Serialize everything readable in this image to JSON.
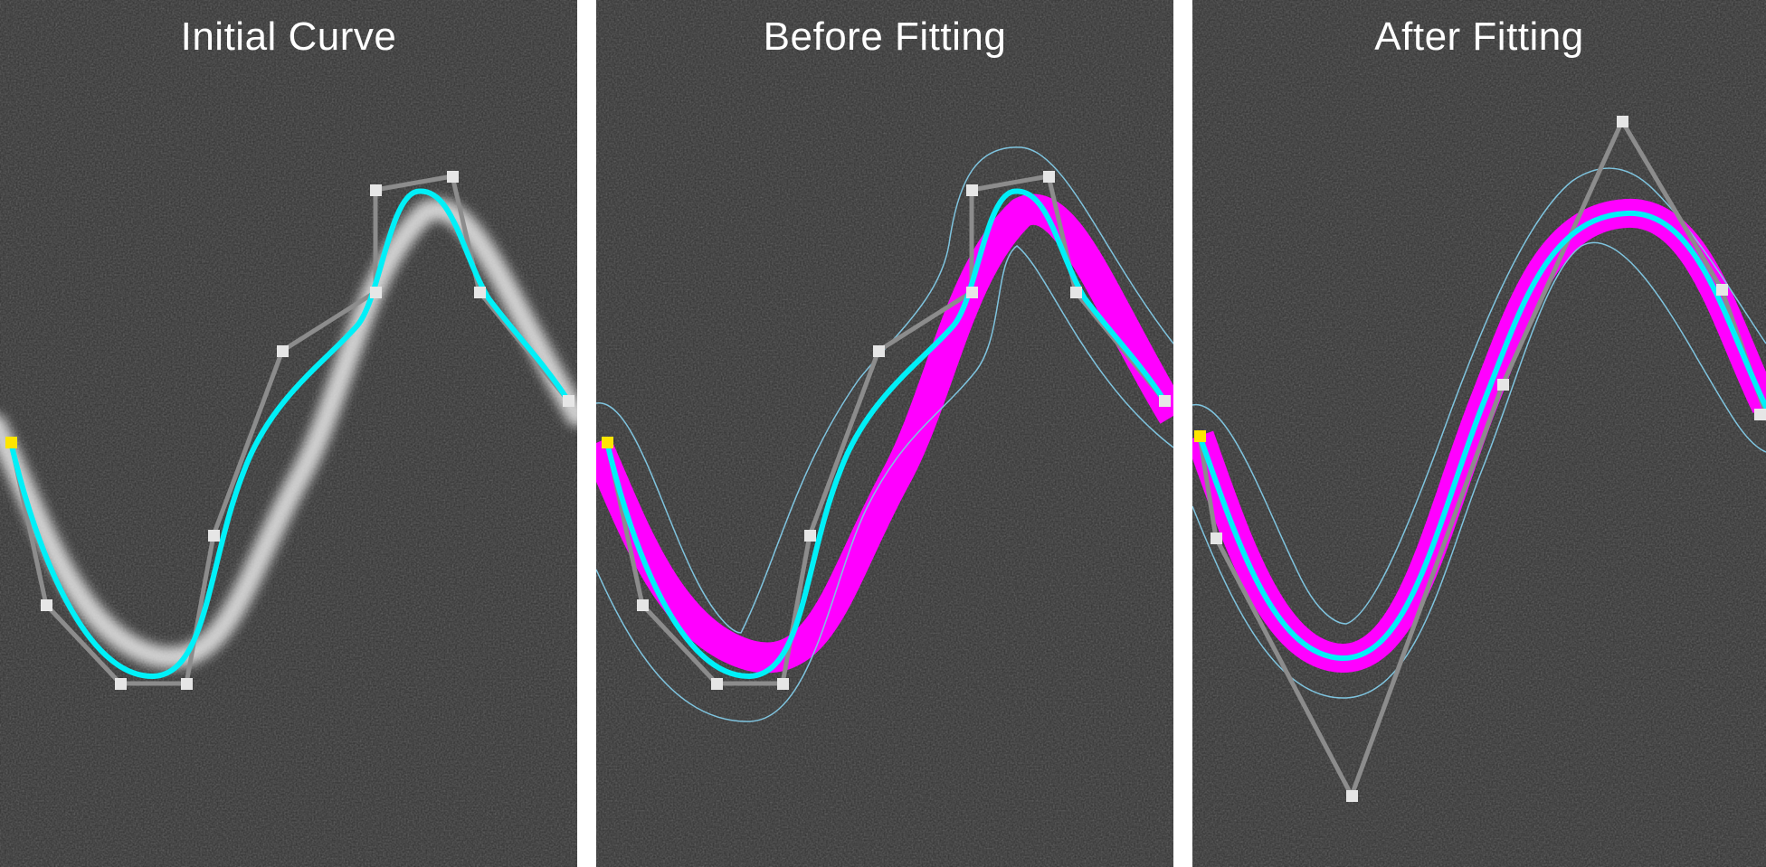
{
  "panels": [
    {
      "title": "Initial Curve"
    },
    {
      "title": "Before Fitting"
    },
    {
      "title": "After Fitting"
    }
  ],
  "colors": {
    "background_noise": "#2f2f2f",
    "curve": "#00f0f8",
    "control_polygon": "#8c8c8c",
    "control_point": "#e6e6e6",
    "first_control_point": "#ffe600",
    "fit_region": "#ff00ff",
    "search_band": "#7fc4df",
    "target_ridge": "#e8e8e8"
  }
}
